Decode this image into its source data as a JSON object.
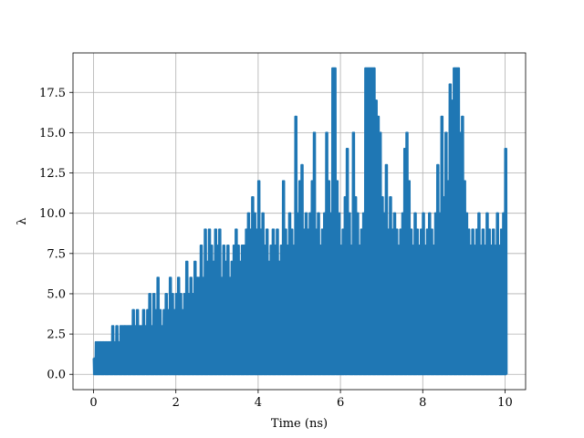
{
  "chart_data": {
    "type": "line",
    "title": "",
    "xlabel": "Time (ns)",
    "ylabel": "λ",
    "xlim": [
      -0.5,
      10.5
    ],
    "ylim": [
      -0.95,
      19.95
    ],
    "xticks": [
      0,
      2,
      4,
      6,
      8,
      10
    ],
    "xtick_labels": [
      "0",
      "2",
      "4",
      "6",
      "8",
      "10"
    ],
    "yticks": [
      0.0,
      2.5,
      5.0,
      7.5,
      10.0,
      12.5,
      15.0,
      17.5
    ],
    "ytick_labels": [
      "0.0",
      "2.5",
      "5.0",
      "7.5",
      "10.0",
      "12.5",
      "15.0",
      "17.5"
    ],
    "grid": true,
    "series": [
      {
        "color": "#1f77b4",
        "note_x_units": "ns",
        "x": [
          0.0,
          0.05,
          0.1,
          0.15,
          0.2,
          0.25,
          0.3,
          0.35,
          0.4,
          0.45,
          0.5,
          0.55,
          0.6,
          0.65,
          0.7,
          0.75,
          0.8,
          0.85,
          0.9,
          0.95,
          1.0,
          1.05,
          1.1,
          1.15,
          1.2,
          1.25,
          1.3,
          1.35,
          1.4,
          1.45,
          1.5,
          1.55,
          1.6,
          1.65,
          1.7,
          1.75,
          1.8,
          1.85,
          1.9,
          1.95,
          2.0,
          2.05,
          2.1,
          2.15,
          2.2,
          2.25,
          2.3,
          2.35,
          2.4,
          2.45,
          2.5,
          2.55,
          2.6,
          2.65,
          2.7,
          2.75,
          2.8,
          2.85,
          2.9,
          2.95,
          3.0,
          3.05,
          3.1,
          3.15,
          3.2,
          3.25,
          3.3,
          3.35,
          3.4,
          3.45,
          3.5,
          3.55,
          3.6,
          3.65,
          3.7,
          3.75,
          3.8,
          3.85,
          3.9,
          3.95,
          4.0,
          4.05,
          4.1,
          4.15,
          4.2,
          4.25,
          4.3,
          4.35,
          4.4,
          4.45,
          4.5,
          4.55,
          4.6,
          4.65,
          4.7,
          4.75,
          4.8,
          4.85,
          4.9,
          4.95,
          5.0,
          5.05,
          5.1,
          5.15,
          5.2,
          5.25,
          5.3,
          5.35,
          5.4,
          5.45,
          5.5,
          5.55,
          5.6,
          5.65,
          5.7,
          5.75,
          5.8,
          5.85,
          5.9,
          5.95,
          6.0,
          6.05,
          6.1,
          6.15,
          6.2,
          6.25,
          6.3,
          6.35,
          6.4,
          6.45,
          6.5,
          6.55,
          6.6,
          6.65,
          6.7,
          6.75,
          6.8,
          6.85,
          6.9,
          6.95,
          7.0,
          7.05,
          7.1,
          7.15,
          7.2,
          7.25,
          7.3,
          7.35,
          7.4,
          7.45,
          7.5,
          7.55,
          7.6,
          7.65,
          7.7,
          7.75,
          7.8,
          7.85,
          7.9,
          7.95,
          8.0,
          8.05,
          8.1,
          8.15,
          8.2,
          8.25,
          8.3,
          8.35,
          8.4,
          8.45,
          8.5,
          8.55,
          8.6,
          8.65,
          8.7,
          8.75,
          8.8,
          8.85,
          8.9,
          8.95,
          9.0,
          9.05,
          9.1,
          9.15,
          9.2,
          9.25,
          9.3,
          9.35,
          9.4,
          9.45,
          9.5,
          9.55,
          9.6,
          9.65,
          9.7,
          9.75,
          9.8,
          9.85,
          9.9,
          9.95,
          10.0
        ],
        "upper": [
          1,
          2,
          2,
          2,
          2,
          2,
          2,
          2,
          2,
          3,
          2,
          3,
          2,
          3,
          3,
          3,
          3,
          3,
          3,
          4,
          3,
          4,
          3,
          3,
          4,
          3,
          4,
          5,
          3,
          5,
          4,
          6,
          4,
          3,
          4,
          5,
          4,
          6,
          5,
          4,
          5,
          6,
          5,
          4,
          5,
          7,
          5,
          6,
          5,
          7,
          6,
          6,
          8,
          6,
          9,
          7,
          9,
          8,
          7,
          9,
          8,
          9,
          6,
          8,
          7,
          8,
          6,
          7,
          8,
          9,
          8,
          7,
          8,
          8,
          9,
          10,
          9,
          11,
          10,
          9,
          12,
          9,
          10,
          8,
          9,
          7,
          8,
          9,
          8,
          9,
          7,
          8,
          12,
          9,
          8,
          10,
          9,
          8,
          16,
          10,
          12,
          13,
          9,
          10,
          9,
          10,
          12,
          15,
          9,
          10,
          8,
          9,
          10,
          15,
          12,
          10,
          19,
          19,
          12,
          10,
          8,
          9,
          11,
          14,
          10,
          8,
          15,
          11,
          10,
          8,
          9,
          10,
          19,
          19,
          19,
          19,
          19,
          17,
          16,
          15,
          11,
          10,
          13,
          9,
          11,
          9,
          10,
          9,
          8,
          9,
          10,
          14,
          15,
          12,
          9,
          8,
          10,
          9,
          8,
          9,
          10,
          8,
          9,
          10,
          9,
          8,
          10,
          13,
          10,
          16,
          11,
          15,
          12,
          18,
          17,
          19,
          19,
          19,
          15,
          16,
          12,
          10,
          9,
          8,
          9,
          8,
          9,
          10,
          8,
          9,
          8,
          10,
          9,
          8,
          9,
          8,
          10,
          8,
          9,
          10,
          14
        ],
        "lower": [
          0,
          0,
          0,
          0,
          0,
          0,
          0,
          0,
          0,
          0,
          0,
          0,
          0,
          0,
          0,
          0,
          0,
          0,
          0,
          0,
          0,
          0,
          0,
          0,
          0,
          0,
          0,
          0,
          0,
          0,
          0,
          0,
          0,
          0,
          0,
          0,
          0,
          0,
          0,
          0,
          0,
          0,
          0,
          0,
          0,
          0,
          0,
          0,
          0,
          0,
          0,
          0,
          0,
          0,
          0,
          0,
          0,
          0,
          0,
          0,
          0,
          0,
          0,
          0,
          0,
          0,
          0,
          0,
          0,
          0,
          0,
          0,
          0,
          0,
          0,
          0,
          0,
          0,
          0,
          0,
          0,
          0,
          0,
          0,
          0,
          0,
          0,
          0,
          0,
          0,
          0,
          0,
          0,
          0,
          0,
          0,
          0,
          0,
          0,
          0,
          0,
          0,
          0,
          0,
          0,
          0,
          0,
          0,
          0,
          0,
          0,
          0,
          0,
          0,
          0,
          0,
          0,
          0,
          0,
          0,
          0,
          0,
          0,
          0,
          0,
          0,
          0,
          0,
          0,
          0,
          0,
          0,
          0,
          0,
          0,
          0,
          0,
          0,
          0,
          0,
          0,
          0,
          0,
          0,
          0,
          0,
          0,
          0,
          0,
          0,
          0,
          0,
          0,
          0,
          0,
          0,
          0,
          0,
          0,
          0,
          0,
          0,
          0,
          0,
          0,
          0,
          0,
          0,
          0,
          0,
          0,
          0,
          0,
          0,
          0,
          0,
          0,
          0,
          0,
          0,
          0,
          0,
          0,
          0,
          0,
          0,
          0,
          0,
          0,
          0,
          0,
          0,
          0,
          0,
          0,
          0,
          0,
          0,
          0,
          0,
          0
        ]
      }
    ]
  }
}
